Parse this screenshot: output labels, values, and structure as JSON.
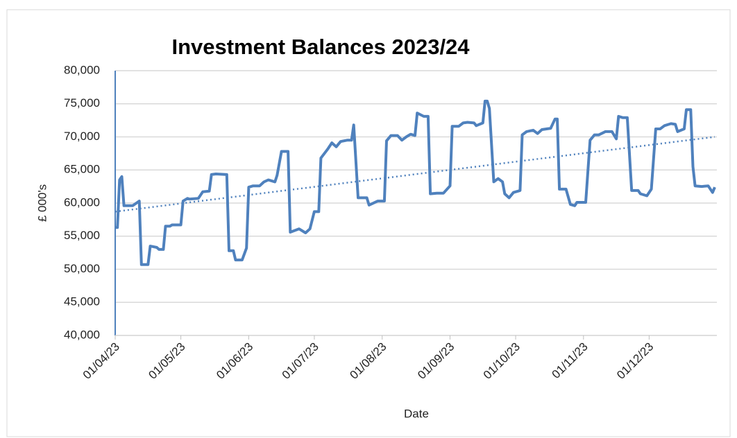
{
  "chart_data": {
    "type": "line",
    "title": "Investment Balances 2023/24",
    "x_label": "Date",
    "y_label": "£ 000's",
    "x": [
      "01/04/23",
      "02/04/23",
      "03/04/23",
      "04/04/23",
      "05/04/23",
      "09/04/23",
      "12/04/23",
      "13/04/23",
      "16/04/23",
      "17/04/23",
      "20/04/23",
      "21/04/23",
      "23/04/23",
      "24/04/23",
      "26/04/23",
      "27/04/23",
      "01/05/23",
      "02/05/23",
      "04/05/23",
      "05/05/23",
      "09/05/23",
      "11/05/23",
      "14/05/23",
      "15/05/23",
      "17/05/23",
      "22/05/23",
      "23/05/23",
      "25/05/23",
      "26/05/23",
      "29/05/23",
      "31/05/23",
      "01/06/23",
      "03/06/23",
      "06/06/23",
      "08/06/23",
      "10/06/23",
      "13/06/23",
      "14/06/23",
      "16/06/23",
      "19/06/23",
      "20/06/23",
      "24/06/23",
      "27/06/23",
      "29/06/23",
      "01/07/23",
      "03/07/23",
      "04/07/23",
      "07/07/23",
      "09/07/23",
      "11/07/23",
      "13/07/23",
      "16/07/23",
      "18/07/23",
      "19/07/23",
      "21/07/23",
      "25/07/23",
      "26/07/23",
      "30/07/23",
      "02/08/23",
      "03/08/23",
      "05/08/23",
      "08/08/23",
      "10/08/23",
      "12/08/23",
      "14/08/23",
      "16/08/23",
      "17/08/23",
      "20/08/23",
      "22/08/23",
      "23/08/23",
      "26/08/23",
      "29/08/23",
      "01/09/23",
      "02/09/23",
      "05/09/23",
      "07/09/23",
      "09/09/23",
      "12/09/23",
      "13/09/23",
      "16/09/23",
      "17/09/23",
      "18/09/23",
      "19/09/23",
      "21/09/23",
      "23/09/23",
      "25/09/23",
      "26/09/23",
      "28/09/23",
      "30/09/23",
      "03/10/23",
      "04/10/23",
      "06/10/23",
      "09/10/23",
      "11/10/23",
      "13/10/23",
      "17/10/23",
      "19/10/23",
      "20/10/23",
      "21/10/23",
      "24/10/23",
      "26/10/23",
      "28/10/23",
      "29/10/23",
      "02/11/23",
      "04/11/23",
      "06/11/23",
      "08/11/23",
      "11/11/23",
      "14/11/23",
      "16/11/23",
      "17/11/23",
      "19/11/23",
      "21/11/23",
      "23/11/23",
      "26/11/23",
      "27/11/23",
      "30/11/23",
      "02/12/23",
      "04/12/23",
      "06/12/23",
      "08/12/23",
      "11/12/23",
      "13/12/23",
      "14/12/23",
      "17/12/23",
      "18/12/23",
      "20/12/23",
      "21/12/23",
      "22/12/23",
      "25/12/23",
      "28/12/23",
      "30/12/23",
      "31/12/23"
    ],
    "values": [
      56300,
      56300,
      63500,
      64000,
      59600,
      59600,
      60300,
      50700,
      50700,
      53500,
      53300,
      53000,
      53000,
      56500,
      56500,
      56700,
      56700,
      60300,
      60700,
      60600,
      60700,
      61700,
      61800,
      64300,
      64400,
      64300,
      52800,
      52800,
      51400,
      51400,
      53200,
      62400,
      62600,
      62600,
      63200,
      63500,
      63200,
      64200,
      67800,
      67800,
      55600,
      56100,
      55500,
      56100,
      58700,
      58700,
      66800,
      68100,
      69100,
      68500,
      69300,
      69500,
      69500,
      71800,
      60800,
      60800,
      59700,
      60300,
      60300,
      69400,
      70200,
      70200,
      69500,
      70000,
      70400,
      70200,
      73600,
      73100,
      73100,
      61400,
      61500,
      61500,
      62600,
      71600,
      71600,
      72100,
      72200,
      72100,
      71700,
      72100,
      75400,
      75400,
      74300,
      63200,
      63700,
      63200,
      61400,
      60800,
      61600,
      61900,
      70300,
      70800,
      71000,
      70500,
      71100,
      71300,
      72700,
      72700,
      62100,
      62100,
      59800,
      59600,
      60100,
      60100,
      69500,
      70300,
      70300,
      70800,
      70800,
      69700,
      73100,
      72900,
      72900,
      61900,
      61900,
      61400,
      61100,
      62100,
      71200,
      71200,
      71700,
      72000,
      71900,
      70800,
      71200,
      74100,
      74100,
      65500,
      62600,
      62500,
      62600,
      61600,
      62400
    ],
    "color": "#4f81bd",
    "trendline": {
      "x": [
        "01/04/23",
        "31/12/23"
      ],
      "values": [
        58700,
        70000
      ],
      "color": "#4f81bd",
      "dash": "dotted"
    },
    "xlim": [
      "01/04/23",
      "31/12/23"
    ],
    "xticks": [
      "01/04/23",
      "01/05/23",
      "01/06/23",
      "01/07/23",
      "01/08/23",
      "01/09/23",
      "01/10/23",
      "01/11/23",
      "01/12/23"
    ],
    "ylim": [
      40000,
      80000
    ],
    "yticks": [
      {
        "value": 40000,
        "label": "40,000"
      },
      {
        "value": 45000,
        "label": "45,000"
      },
      {
        "value": 50000,
        "label": "50,000"
      },
      {
        "value": 55000,
        "label": "55,000"
      },
      {
        "value": 60000,
        "label": "60,000"
      },
      {
        "value": 65000,
        "label": "65,000"
      },
      {
        "value": 70000,
        "label": "70,000"
      },
      {
        "value": 75000,
        "label": "75,000"
      },
      {
        "value": 80000,
        "label": "80,000"
      }
    ],
    "grid": true
  }
}
